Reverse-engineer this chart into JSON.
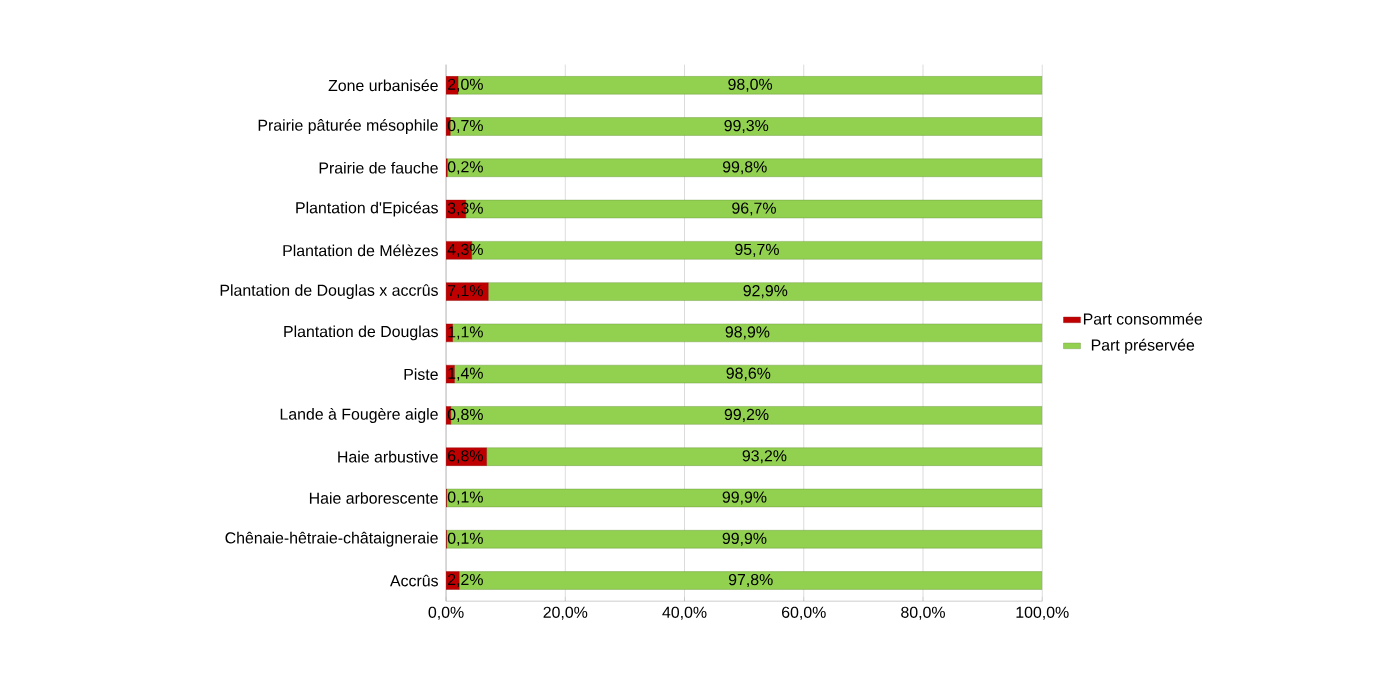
{
  "chart_data": {
    "type": "bar",
    "orientation": "horizontal",
    "stacked": true,
    "categories": [
      "Zone urbanisée",
      "Prairie pâturée mésophile",
      "Prairie de fauche",
      "Plantation d'Epicéas",
      "Plantation de Mélèzes",
      "Plantation de Douglas x accrûs",
      "Plantation de Douglas",
      "Piste",
      "Lande à Fougère aigle",
      "Haie arbustive",
      "Haie arborescente",
      "Chênaie-hêtraie-châtaigneraie",
      "Accrûs"
    ],
    "series": [
      {
        "name": "Part consommée",
        "color": "#c00000",
        "values": [
          2.0,
          0.7,
          0.2,
          3.3,
          4.3,
          7.1,
          1.1,
          1.4,
          0.8,
          6.8,
          0.1,
          0.1,
          2.2
        ],
        "value_labels": [
          "2,0%",
          "0,7%",
          "0,2%",
          "3,3%",
          "4,3%",
          "7,1%",
          "1,1%",
          "1,4%",
          "0,8%",
          "6,8%",
          "0,1%",
          "0,1%",
          "2,2%"
        ]
      },
      {
        "name": "Part préservée",
        "color": "#92d050",
        "values": [
          98.0,
          99.3,
          99.8,
          96.7,
          95.7,
          92.9,
          98.9,
          98.6,
          99.2,
          93.2,
          99.9,
          99.9,
          97.8
        ],
        "value_labels": [
          "98,0%",
          "99,3%",
          "99,8%",
          "96,7%",
          "95,7%",
          "92,9%",
          "98,9%",
          "98,6%",
          "99,2%",
          "93,2%",
          "99,9%",
          "99,9%",
          "97,8%"
        ]
      }
    ],
    "xlim": [
      0,
      100
    ],
    "xticks": [
      {
        "value": 0,
        "label": "0,0%"
      },
      {
        "value": 20,
        "label": "20,0%"
      },
      {
        "value": 40,
        "label": "40,0%"
      },
      {
        "value": 60,
        "label": "60,0%"
      },
      {
        "value": 80,
        "label": "80,0%"
      },
      {
        "value": 100,
        "label": "100,0%"
      }
    ],
    "grid": "x",
    "legend": "right"
  }
}
